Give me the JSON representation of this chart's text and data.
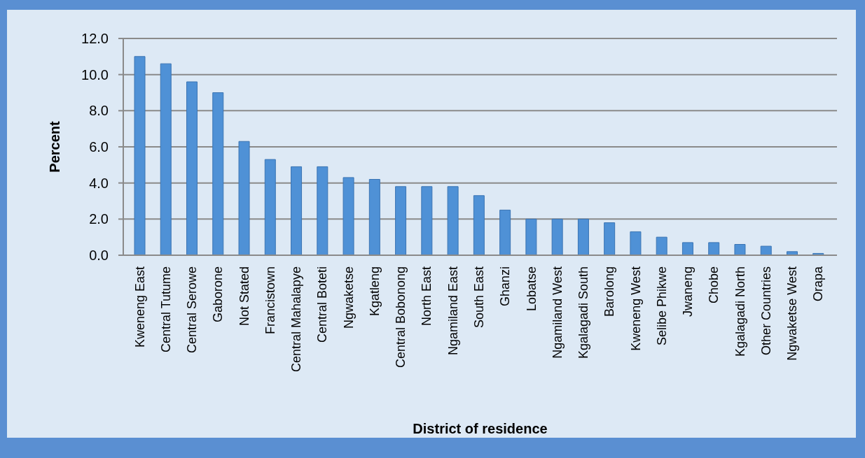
{
  "chart_data": {
    "type": "bar",
    "xlabel": "District of residence",
    "ylabel": "Percent",
    "categories": [
      "Kweneng East",
      "Central Tutume",
      "Central Serowe",
      "Gaborone",
      "Not Stated",
      "Francistown",
      "Central Mahalapye",
      "Central Boteti",
      "Ngwaketse",
      "Kgatleng",
      "Central Bobonong",
      "North East",
      "Ngamiland East",
      "South East",
      "Ghanzi",
      "Lobatse",
      "Ngamiland West",
      "Kgalagadi South",
      "Barolong",
      "Kweneng West",
      "Selibe Phikwe",
      "Jwaneng",
      "Chobe",
      "Kgalagadi North",
      "Other Countries",
      "Ngwaketse West",
      "Orapa"
    ],
    "values": [
      11.0,
      10.6,
      9.6,
      9.0,
      6.3,
      5.3,
      4.9,
      4.9,
      4.3,
      4.2,
      3.8,
      3.8,
      3.8,
      3.3,
      2.5,
      2.0,
      2.0,
      2.0,
      1.8,
      1.3,
      1.0,
      0.7,
      0.7,
      0.6,
      0.5,
      0.2,
      0.1
    ],
    "color": "#4f91d6",
    "ylim": [
      0,
      12
    ],
    "yticks": [
      {
        "value": 0,
        "label": "0.0"
      },
      {
        "value": 2,
        "label": "2.0"
      },
      {
        "value": 4,
        "label": "4.0"
      },
      {
        "value": 6,
        "label": "6.0"
      },
      {
        "value": 8,
        "label": "8.0"
      },
      {
        "value": 10,
        "label": "10.0"
      },
      {
        "value": 12,
        "label": "12.0"
      }
    ],
    "grid": "y"
  }
}
